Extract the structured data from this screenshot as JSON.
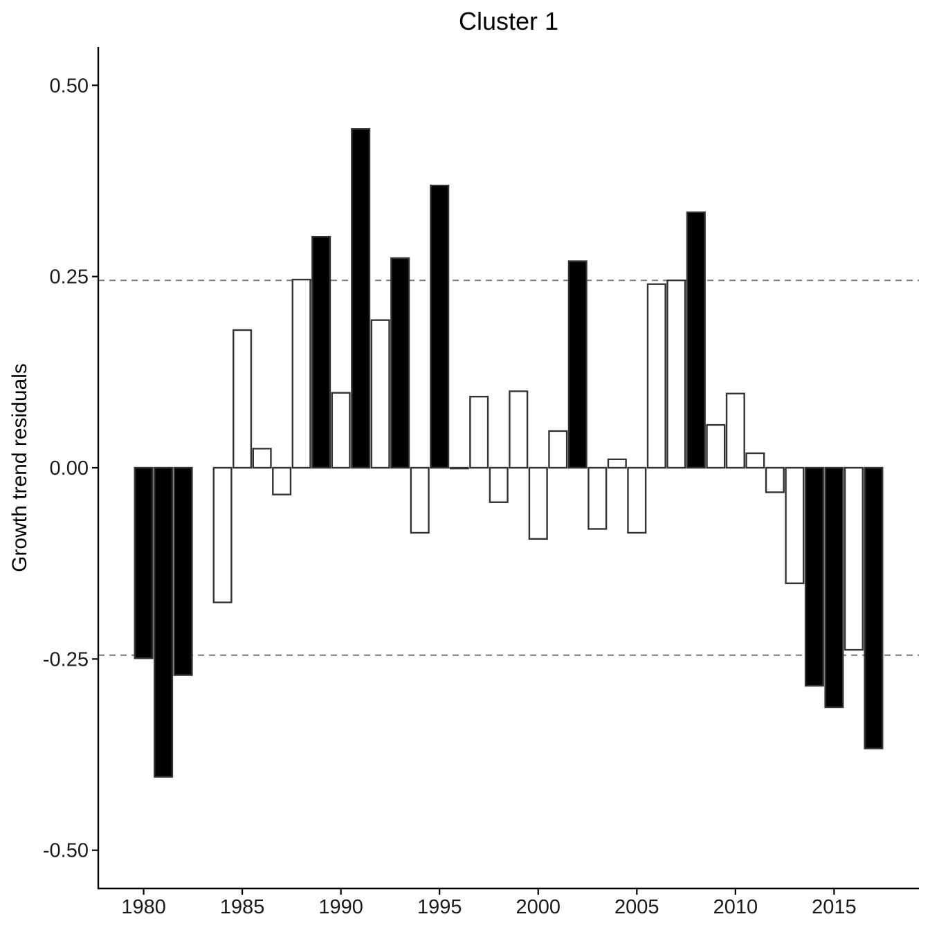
{
  "chart_data": {
    "type": "bar",
    "title": "Cluster 1",
    "xlabel": "",
    "ylabel": "Growth trend residuals",
    "xlim": [
      1977.7,
      2019.3
    ],
    "ylim": [
      -0.55,
      0.55
    ],
    "x_ticks": [
      1980,
      1985,
      1990,
      1995,
      2000,
      2005,
      2010,
      2015
    ],
    "y_ticks": [
      0.5,
      0.25,
      0.0,
      -0.25,
      -0.5
    ],
    "y_tick_labels": [
      "0.50",
      "0.25",
      "0.00",
      "-0.25",
      "-0.50"
    ],
    "reference_lines": [
      0.245,
      -0.245
    ],
    "grid": false,
    "legend": "none",
    "colors": {
      "highlight_fill": "#000000",
      "normal_fill": "#ffffff",
      "bar_outline": "#333333",
      "reference_line": "#808080",
      "axis": "#000000"
    },
    "bars": [
      {
        "x": 1980,
        "value": -0.249,
        "highlight": true
      },
      {
        "x": 1981,
        "value": -0.404,
        "highlight": true
      },
      {
        "x": 1982,
        "value": -0.271,
        "highlight": true
      },
      {
        "x": 1984,
        "value": -0.176,
        "highlight": false
      },
      {
        "x": 1985,
        "value": 0.18,
        "highlight": false
      },
      {
        "x": 1986,
        "value": 0.025,
        "highlight": false
      },
      {
        "x": 1987,
        "value": -0.035,
        "highlight": false
      },
      {
        "x": 1988,
        "value": 0.246,
        "highlight": false
      },
      {
        "x": 1989,
        "value": 0.302,
        "highlight": true
      },
      {
        "x": 1990,
        "value": 0.098,
        "highlight": false
      },
      {
        "x": 1991,
        "value": 0.443,
        "highlight": true
      },
      {
        "x": 1992,
        "value": 0.193,
        "highlight": false
      },
      {
        "x": 1993,
        "value": 0.274,
        "highlight": true
      },
      {
        "x": 1994,
        "value": -0.085,
        "highlight": false
      },
      {
        "x": 1995,
        "value": 0.369,
        "highlight": true
      },
      {
        "x": 1996,
        "value": -0.001,
        "highlight": false
      },
      {
        "x": 1997,
        "value": 0.093,
        "highlight": false
      },
      {
        "x": 1998,
        "value": -0.045,
        "highlight": false
      },
      {
        "x": 1999,
        "value": 0.1,
        "highlight": false
      },
      {
        "x": 2000,
        "value": -0.093,
        "highlight": false
      },
      {
        "x": 2001,
        "value": 0.048,
        "highlight": false
      },
      {
        "x": 2002,
        "value": 0.27,
        "highlight": true
      },
      {
        "x": 2003,
        "value": -0.08,
        "highlight": false
      },
      {
        "x": 2004,
        "value": 0.011,
        "highlight": false
      },
      {
        "x": 2005,
        "value": -0.085,
        "highlight": false
      },
      {
        "x": 2006,
        "value": 0.24,
        "highlight": false
      },
      {
        "x": 2007,
        "value": 0.245,
        "highlight": false
      },
      {
        "x": 2008,
        "value": 0.334,
        "highlight": true
      },
      {
        "x": 2009,
        "value": 0.056,
        "highlight": false
      },
      {
        "x": 2010,
        "value": 0.097,
        "highlight": false
      },
      {
        "x": 2011,
        "value": 0.019,
        "highlight": false
      },
      {
        "x": 2012,
        "value": -0.032,
        "highlight": false
      },
      {
        "x": 2013,
        "value": -0.151,
        "highlight": false
      },
      {
        "x": 2014,
        "value": -0.285,
        "highlight": true
      },
      {
        "x": 2015,
        "value": -0.313,
        "highlight": true
      },
      {
        "x": 2016,
        "value": -0.238,
        "highlight": false
      },
      {
        "x": 2017,
        "value": -0.367,
        "highlight": true
      }
    ]
  }
}
